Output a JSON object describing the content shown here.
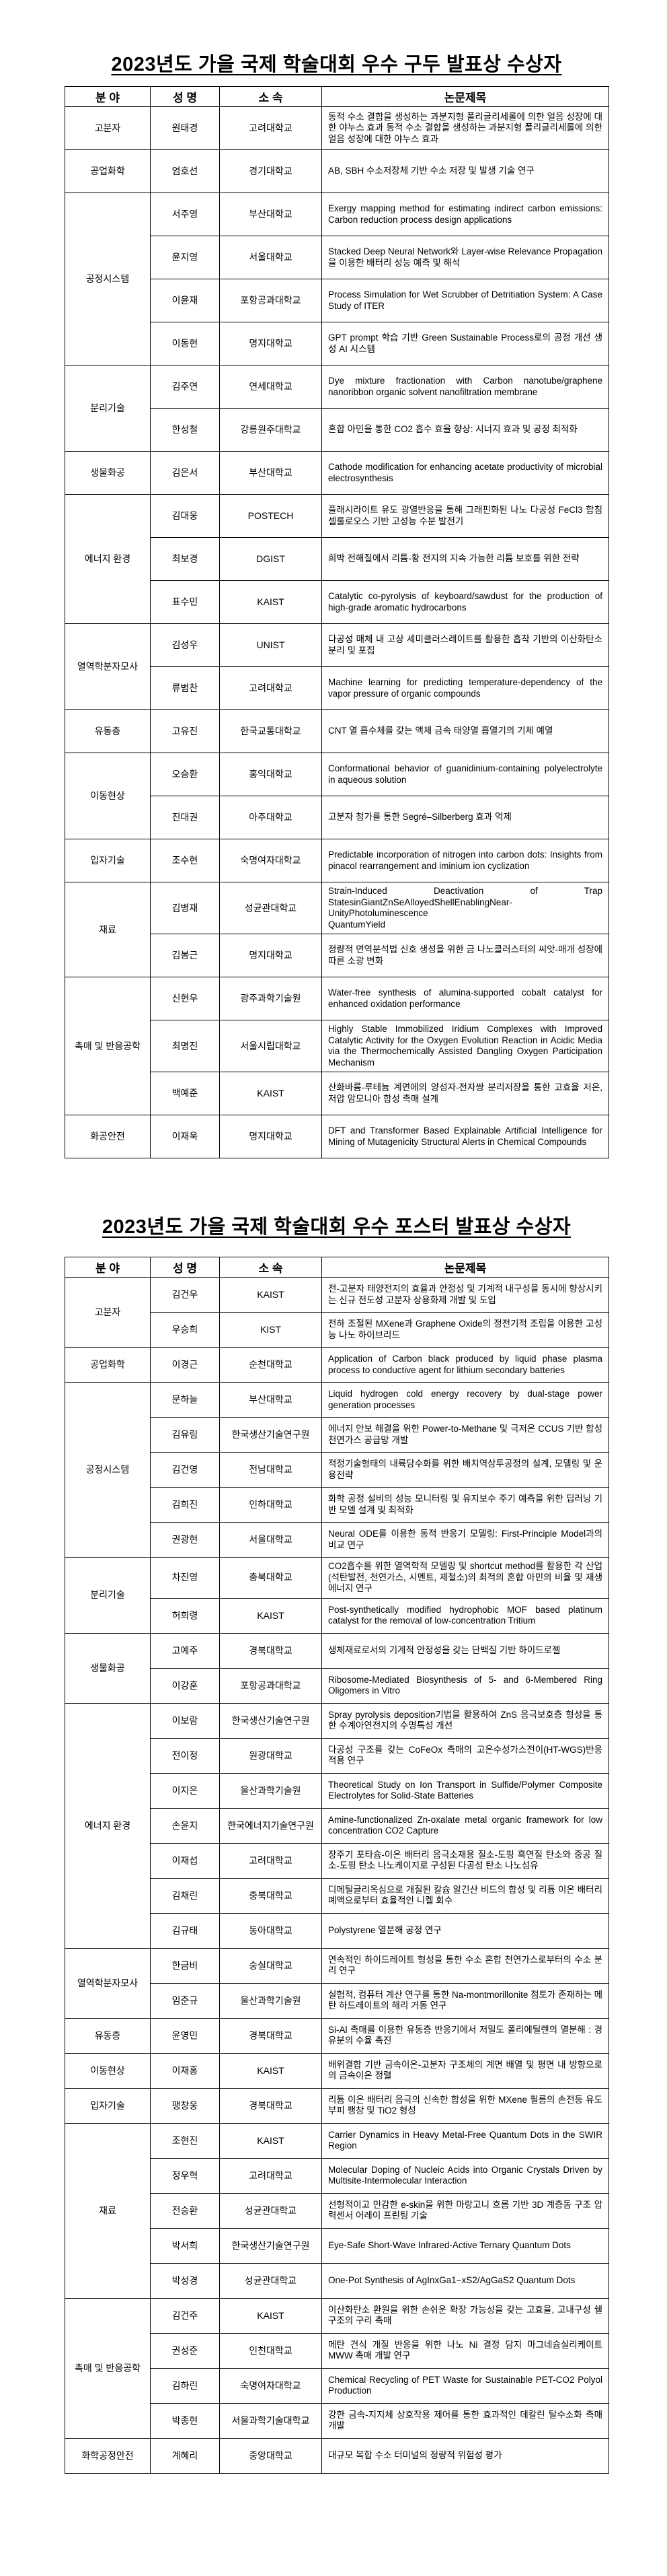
{
  "tables": [
    {
      "title": "2023년도 가을 국제 학술대회 우수 구두 발표상 수상자",
      "headers": [
        "분 야",
        "성 명",
        "소 속",
        "논문제목"
      ],
      "groups": [
        {
          "field": "고분자",
          "rows": [
            {
              "name": "원태경",
              "affiliation": "고려대학교",
              "paper_title": "동적 수소 결합을 생성하는 과분지형 폴리글리세롤에 의한 얼음 성장에 대한 야누스 효과 동적 수소 결합을 생성하는 과분지형 폴리글리세롤에 의한 얼음 성장에 대한 야누스 효과"
            }
          ]
        },
        {
          "field": "공업화학",
          "rows": [
            {
              "name": "엄호선",
              "affiliation": "경기대학교",
              "paper_title": "AB, SBH 수소저장체 기반 수소 저장 및 발생 기술 연구"
            }
          ]
        },
        {
          "field": "공정시스템",
          "rows": [
            {
              "name": "서주영",
              "affiliation": "부산대학교",
              "paper_title": "Exergy mapping method for estimating indirect carbon emissions: Carbon reduction process design applications"
            },
            {
              "name": "윤지영",
              "affiliation": "서울대학교",
              "paper_title": "Stacked Deep Neural Network와 Layer-wise Relevance Propagation을 이용한 배터리 성능 예측 및 해석"
            },
            {
              "name": "이윤재",
              "affiliation": "포항공과대학교",
              "paper_title": "Process Simulation for Wet Scrubber of Detritiation System: A Case Study of ITER"
            },
            {
              "name": "이동현",
              "affiliation": "명지대학교",
              "paper_title": "GPT prompt 학습 기반 Green Sustainable Process로의 공정 개선 생성 AI 시스템"
            }
          ]
        },
        {
          "field": "분리기술",
          "rows": [
            {
              "name": "김주연",
              "affiliation": "연세대학교",
              "paper_title": "Dye mixture fractionation with Carbon nanotube/graphene nanoribbon organic solvent nanofiltration membrane"
            },
            {
              "name": "한성철",
              "affiliation": "강릉원주대학교",
              "paper_title": "혼합 아민을 통한 CO2 흡수 효율 향상: 시너지 효과 및 공정 최적화"
            }
          ]
        },
        {
          "field": "생물화공",
          "rows": [
            {
              "name": "김은서",
              "affiliation": "부산대학교",
              "paper_title": "Cathode modification for enhancing acetate productivity of microbial electrosynthesis"
            }
          ]
        },
        {
          "field": "에너지 환경",
          "rows": [
            {
              "name": "김대웅",
              "affiliation": "POSTECH",
              "paper_title": "플래시라이트 유도 광열반응을 통해 그래핀화된 나노 다공성 FeCl3 함침 셀룰로오스 기반 고성능 수분 발전기"
            },
            {
              "name": "최보경",
              "affiliation": "DGIST",
              "paper_title": "희박 전해질에서 리튬-황 전지의 지속 가능한 리튬 보호를 위한 전략"
            },
            {
              "name": "표수민",
              "affiliation": "KAIST",
              "paper_title": "Catalytic co-pyrolysis of keyboard/sawdust for the production of high-grade aromatic hydrocarbons"
            }
          ]
        },
        {
          "field": "열역학분자모사",
          "rows": [
            {
              "name": "김성우",
              "affiliation": "UNIST",
              "paper_title": "다공성 매체 내 고상 세미클러스레이트를 활용한 흡착 기반의 이산화탄소 분리 및 포집"
            },
            {
              "name": "류범찬",
              "affiliation": "고려대학교",
              "paper_title": "Machine learning for predicting temperature-dependency of the vapor pressure of organic compounds"
            }
          ]
        },
        {
          "field": "유동층",
          "rows": [
            {
              "name": "고유진",
              "affiliation": "한국교통대학교",
              "paper_title": "CNT 열 흡수체를 갖는 액체 금속 태양열 흡열기의 기체 예열"
            }
          ]
        },
        {
          "field": "이동현상",
          "rows": [
            {
              "name": "오승환",
              "affiliation": "홍익대학교",
              "paper_title": "Conformational behavior of guanidinium-containing polyelectrolyte in aqueous solution"
            },
            {
              "name": "진대권",
              "affiliation": "아주대학교",
              "paper_title": "고분자 첨가를 통한 Segré–Silberberg 효과 억제"
            }
          ]
        },
        {
          "field": "입자기술",
          "rows": [
            {
              "name": "조수현",
              "affiliation": "숙명여자대학교",
              "paper_title": "Predictable incorporation of nitrogen into carbon dots: Insights from pinacol rearrangement and iminium ion cyclization"
            }
          ]
        },
        {
          "field": "재료",
          "rows": [
            {
              "name": "김병재",
              "affiliation": "성균관대학교",
              "paper_title": "Strain-Induced Deactivation of Trap StatesinGiantZnSeAlloyedShellEnablingNear-UnityPhotoluminescence\nQuantumYield"
            },
            {
              "name": "김봉근",
              "affiliation": "명지대학교",
              "paper_title": "정량적 면역분석법 신호 생성을 위한 금 나노클러스터의 씨앗-매개 성장에 따른 소광 변화"
            }
          ]
        },
        {
          "field": "촉매 및 반응공학",
          "rows": [
            {
              "name": "신현우",
              "affiliation": "광주과학기술원",
              "paper_title": "Water-free synthesis of alumina-supported cobalt catalyst for enhanced oxidation performance"
            },
            {
              "name": "최명진",
              "affiliation": "서울시립대학교",
              "paper_title": "Highly Stable Immobilized Iridium Complexes with Improved Catalytic Activity for the Oxygen Evolution Reaction in Acidic Media via the Thermochemically Assisted Dangling Oxygen Participation Mechanism"
            },
            {
              "name": "백예준",
              "affiliation": "KAIST",
              "paper_title": "산화바륨-루테늄 계면에의 양성자-전자쌍 분리저장을 통한 고효율 저온, 저압 암모니아 합성 촉매 설계"
            }
          ]
        },
        {
          "field": "화공안전",
          "rows": [
            {
              "name": "이재욱",
              "affiliation": "명지대학교",
              "paper_title": "DFT and Transformer Based Explainable Artificial Intelligence for Mining of Mutagenicity Structural Alerts in Chemical Compounds"
            }
          ]
        }
      ]
    },
    {
      "title": "2023년도 가을 국제 학술대회 우수 포스터 발표상 수상자",
      "headers": [
        "분 야",
        "성 명",
        "소 속",
        "논문제목"
      ],
      "groups": [
        {
          "field": "고분자",
          "rows": [
            {
              "name": "김건우",
              "affiliation": "KAIST",
              "paper_title": "전-고분자 태양전지의 효율과 안정성 및 기계적 내구성을 동시에 향상시키는 신규 전도성 고분자 상용화제 개발 및 도입"
            },
            {
              "name": "우승희",
              "affiliation": "KIST",
              "paper_title": "전하 조절된 MXene과 Graphene Oxide의 정전기적 조립을 이용한 고성능 나노 하이브리드"
            }
          ]
        },
        {
          "field": "공업화학",
          "rows": [
            {
              "name": "이경근",
              "affiliation": "순천대학교",
              "paper_title": "Application of Carbon black produced by liquid phase plasma process to conductive agent for lithium secondary batteries"
            }
          ]
        },
        {
          "field": "공정시스템",
          "rows": [
            {
              "name": "문하늘",
              "affiliation": "부산대학교",
              "paper_title": "Liquid hydrogen cold energy recovery by dual-stage power generation processes"
            },
            {
              "name": "김유림",
              "affiliation": "한국생산기술연구원",
              "paper_title": "에너지 안보 해결을 위한 Power-to-Methane 및 극저온 CCUS 기반 합성천연가스 공급망 개발"
            },
            {
              "name": "김건영",
              "affiliation": "전남대학교",
              "paper_title": "적정기술형태의 내륙담수화를 위한 배치역삼투공정의 설계, 모델링 및 운용전략"
            },
            {
              "name": "김희진",
              "affiliation": "인하대학교",
              "paper_title": "화학 공정 설비의 성능 모니터링 및 유지보수 주기 예측을 위한 딥러닝 기반 모델 설계 및 최적화"
            },
            {
              "name": "권광현",
              "affiliation": "서울대학교",
              "paper_title": "Neural ODE를 이용한 동적 반응기 모델링: First-Principle Model과의 비교 연구"
            }
          ]
        },
        {
          "field": "분리기술",
          "rows": [
            {
              "name": "차진영",
              "affiliation": "충북대학교",
              "paper_title": "CO2흡수를 위한 열역학적 모델링 및 shortcut method를 활용한 각 산업(석탄발전, 천연가스, 시멘트, 제철소)의 최적의 혼합 아민의 비율 및 재생에너지 연구"
            },
            {
              "name": "허희령",
              "affiliation": "KAIST",
              "paper_title": "Post-synthetically modified hydrophobic MOF based platinum catalyst for the removal of low-concentration Tritium"
            }
          ]
        },
        {
          "field": "생물화공",
          "rows": [
            {
              "name": "고예주",
              "affiliation": "경북대학교",
              "paper_title": "생체재료로서의 기계적 안정성을 갖는 단백질 기반 하이드로젤"
            },
            {
              "name": "이강훈",
              "affiliation": "포항공과대학교",
              "paper_title": "Ribosome-Mediated Biosynthesis of 5- and 6-Membered Ring Oligomers in Vitro"
            }
          ]
        },
        {
          "field": "에너지 환경",
          "rows": [
            {
              "name": "이보람",
              "affiliation": "한국생산기술연구원",
              "paper_title": "Spray pyrolysis deposition기법을 활용하여 ZnS 음극보호층 형성을 통한 수계아연전지의 수명특성 개선"
            },
            {
              "name": "전이정",
              "affiliation": "원광대학교",
              "paper_title": "다공성 구조를 갖는 CoFeOx 촉매의 고온수성가스전이(HT-WGS)반응 적용 연구"
            },
            {
              "name": "이지은",
              "affiliation": "울산과학기술원",
              "paper_title": "Theoretical Study on Ion Transport in Sulfide/Polymer Composite Electrolytes for Solid-State Batteries"
            },
            {
              "name": "손윤지",
              "affiliation": "한국에너지기술연구원",
              "paper_title": "Amine-functionalized Zn-oxalate metal organic framework for low concentration CO2 Capture"
            },
            {
              "name": "이재섭",
              "affiliation": "고려대학교",
              "paper_title": "장주기 포타슘-이온 배터리 음극소재용 질소-도핑 흑연질 탄소와 중공 질소-도핑 탄소 나노케이지로 구성된 다공성 탄소 나노섬유"
            },
            {
              "name": "김채린",
              "affiliation": "충북대학교",
              "paper_title": "디메틸글리옥심으로 개질된 칼슘 알긴산 비드의 합성 및 리튬 이온 배터리 폐액으로부터 효율적인 니켈 회수"
            },
            {
              "name": "김규태",
              "affiliation": "동아대학교",
              "paper_title": "Polystyrene 열분해 공정 연구"
            }
          ]
        },
        {
          "field": "열역학분자모사",
          "rows": [
            {
              "name": "한금비",
              "affiliation": "숭실대학교",
              "paper_title": "연속적인 하이드레이트 형성을 통한 수소 혼합 천연가스로부터의 수소 분리 연구"
            },
            {
              "name": "임준규",
              "affiliation": "울산과학기술원",
              "paper_title": "실험적, 컴퓨터 계산 연구를 통한 Na-montmorillonite 점토가 존재하는 메탄 하드레이트의 해리 거동 연구"
            }
          ]
        },
        {
          "field": "유동층",
          "rows": [
            {
              "name": "윤영민",
              "affiliation": "경북대학교",
              "paper_title": "Si-Al 촉매를 이용한 유동층 반응기에서 저밀도 폴리에틸렌의 열분해 : 경유분의 수율 촉진"
            }
          ]
        },
        {
          "field": "이동현상",
          "rows": [
            {
              "name": "이재홍",
              "affiliation": "KAIST",
              "paper_title": "배위결합 기반 금속이온-고분자 구조체의 계면 배열 및 평면 내 방향으로의 금속이온 정렬"
            }
          ]
        },
        {
          "field": "입자기술",
          "rows": [
            {
              "name": "팽창웅",
              "affiliation": "경북대학교",
              "paper_title": "리튬 이온 배터리 음극의 신속한 합성을 위한 MXene 필름의 손전등 유도 부피 팽창 및 TiO2 형성"
            }
          ]
        },
        {
          "field": "재료",
          "rows": [
            {
              "name": "조현진",
              "affiliation": "KAIST",
              "paper_title": "Carrier Dynamics in Heavy Metal-Free Quantum Dots in the SWIR Region"
            },
            {
              "name": "정우혁",
              "affiliation": "고려대학교",
              "paper_title": "Molecular Doping of Nucleic Acids into Organic Crystals Driven by Multisite-Intermolecular Interaction"
            },
            {
              "name": "전승환",
              "affiliation": "성균관대학교",
              "paper_title": "선형적이고 민감한 e-skin을 위한 마랑고니 흐름 기반 3D 계층돔 구조 압력센서 어레이 프린팅 기술"
            },
            {
              "name": "박서희",
              "affiliation": "한국생산기술연구원",
              "paper_title": "Eye-Safe Short-Wave Infrared-Active Ternary Quantum Dots"
            },
            {
              "name": "박성경",
              "affiliation": "성균관대학교",
              "paper_title": "One-Pot Synthesis of AgInxGa1−xS2/AgGaS2 Quantum Dots"
            }
          ]
        },
        {
          "field": "촉매 및 반응공학",
          "rows": [
            {
              "name": "김건주",
              "affiliation": "KAIST",
              "paper_title": "이산화탄소 환원을 위한 손쉬운 확장 가능성을 갖는 고효율, 고내구성 쉘 구조의 구리 촉매"
            },
            {
              "name": "권성준",
              "affiliation": "인천대학교",
              "paper_title": "메탄 건식 개질 반응을 위한 나노 Ni 결정 담지 마그네슘실리케이트 MWW 촉매 개발 연구"
            },
            {
              "name": "김하린",
              "affiliation": "숙명여자대학교",
              "paper_title": "Chemical Recycling of PET Waste for Sustainable PET-CO2 Polyol Production"
            },
            {
              "name": "박종현",
              "affiliation": "서울과학기술대학교",
              "paper_title": "강한 금속-지지체 상호작용 제어를 통한 효과적인 데칼린 탈수소화 촉매 개발"
            }
          ]
        },
        {
          "field": "화학공정안전",
          "rows": [
            {
              "name": "계혜리",
              "affiliation": "중앙대학교",
              "paper_title": "대규모 복합 수소 터미널의 정량적 위험성 평가"
            }
          ]
        }
      ]
    }
  ]
}
